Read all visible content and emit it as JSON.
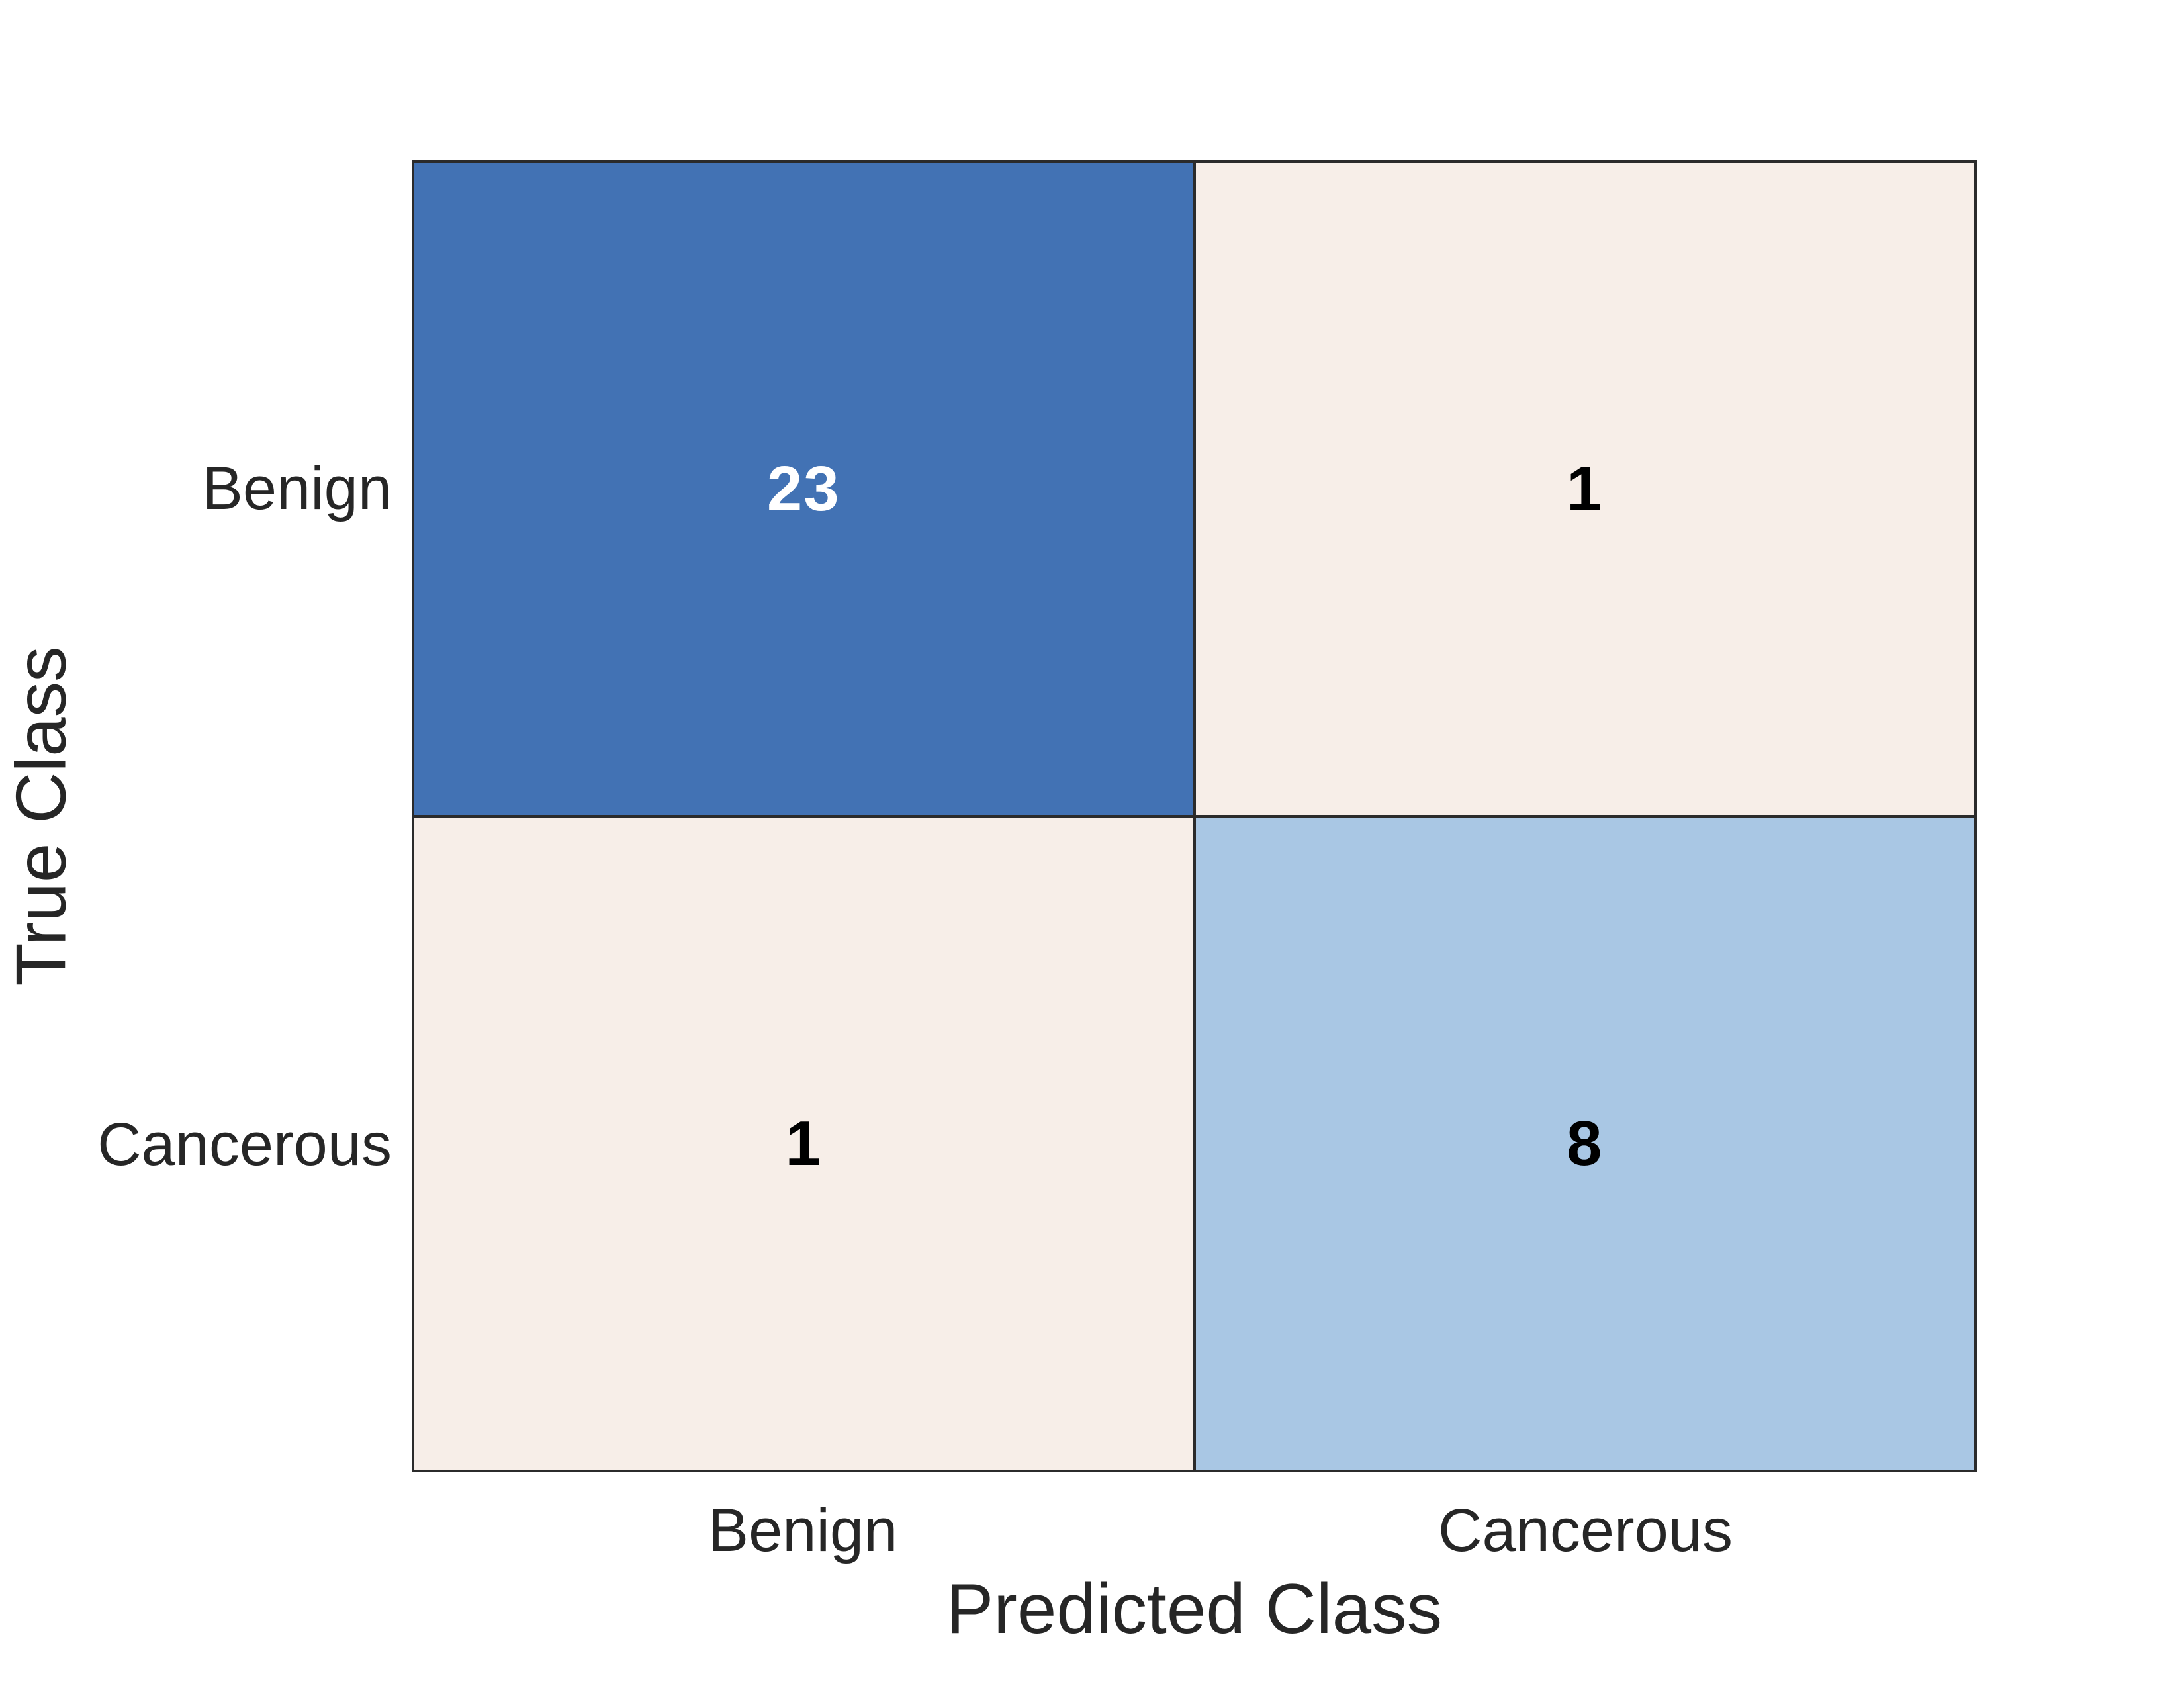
{
  "chart_data": {
    "type": "heatmap",
    "subtype": "confusion-matrix",
    "title": "",
    "xlabel": "Predicted Class",
    "ylabel": "True Class",
    "x_categories": [
      "Benign",
      "Cancerous"
    ],
    "y_categories": [
      "Benign",
      "Cancerous"
    ],
    "matrix": [
      [
        23,
        1
      ],
      [
        1,
        8
      ]
    ],
    "cell_colors": [
      [
        "#4272B4",
        "#F7EEE8"
      ],
      [
        "#F7EEE8",
        "#A9C7E4"
      ]
    ],
    "cell_text_colors": [
      [
        "#FFFFFF",
        "#000000"
      ],
      [
        "#000000",
        "#000000"
      ]
    ],
    "colors": {
      "diagonal_strong": "#4272B4",
      "diagonal_weak": "#A9C7E4",
      "off_diagonal": "#F7EEE8",
      "grid_line": "#2B2B2B",
      "label_text": "#262626",
      "background": "#FFFFFF"
    },
    "legend": "none",
    "grid": true,
    "layout": {
      "rows": 2,
      "cols": 2
    }
  }
}
